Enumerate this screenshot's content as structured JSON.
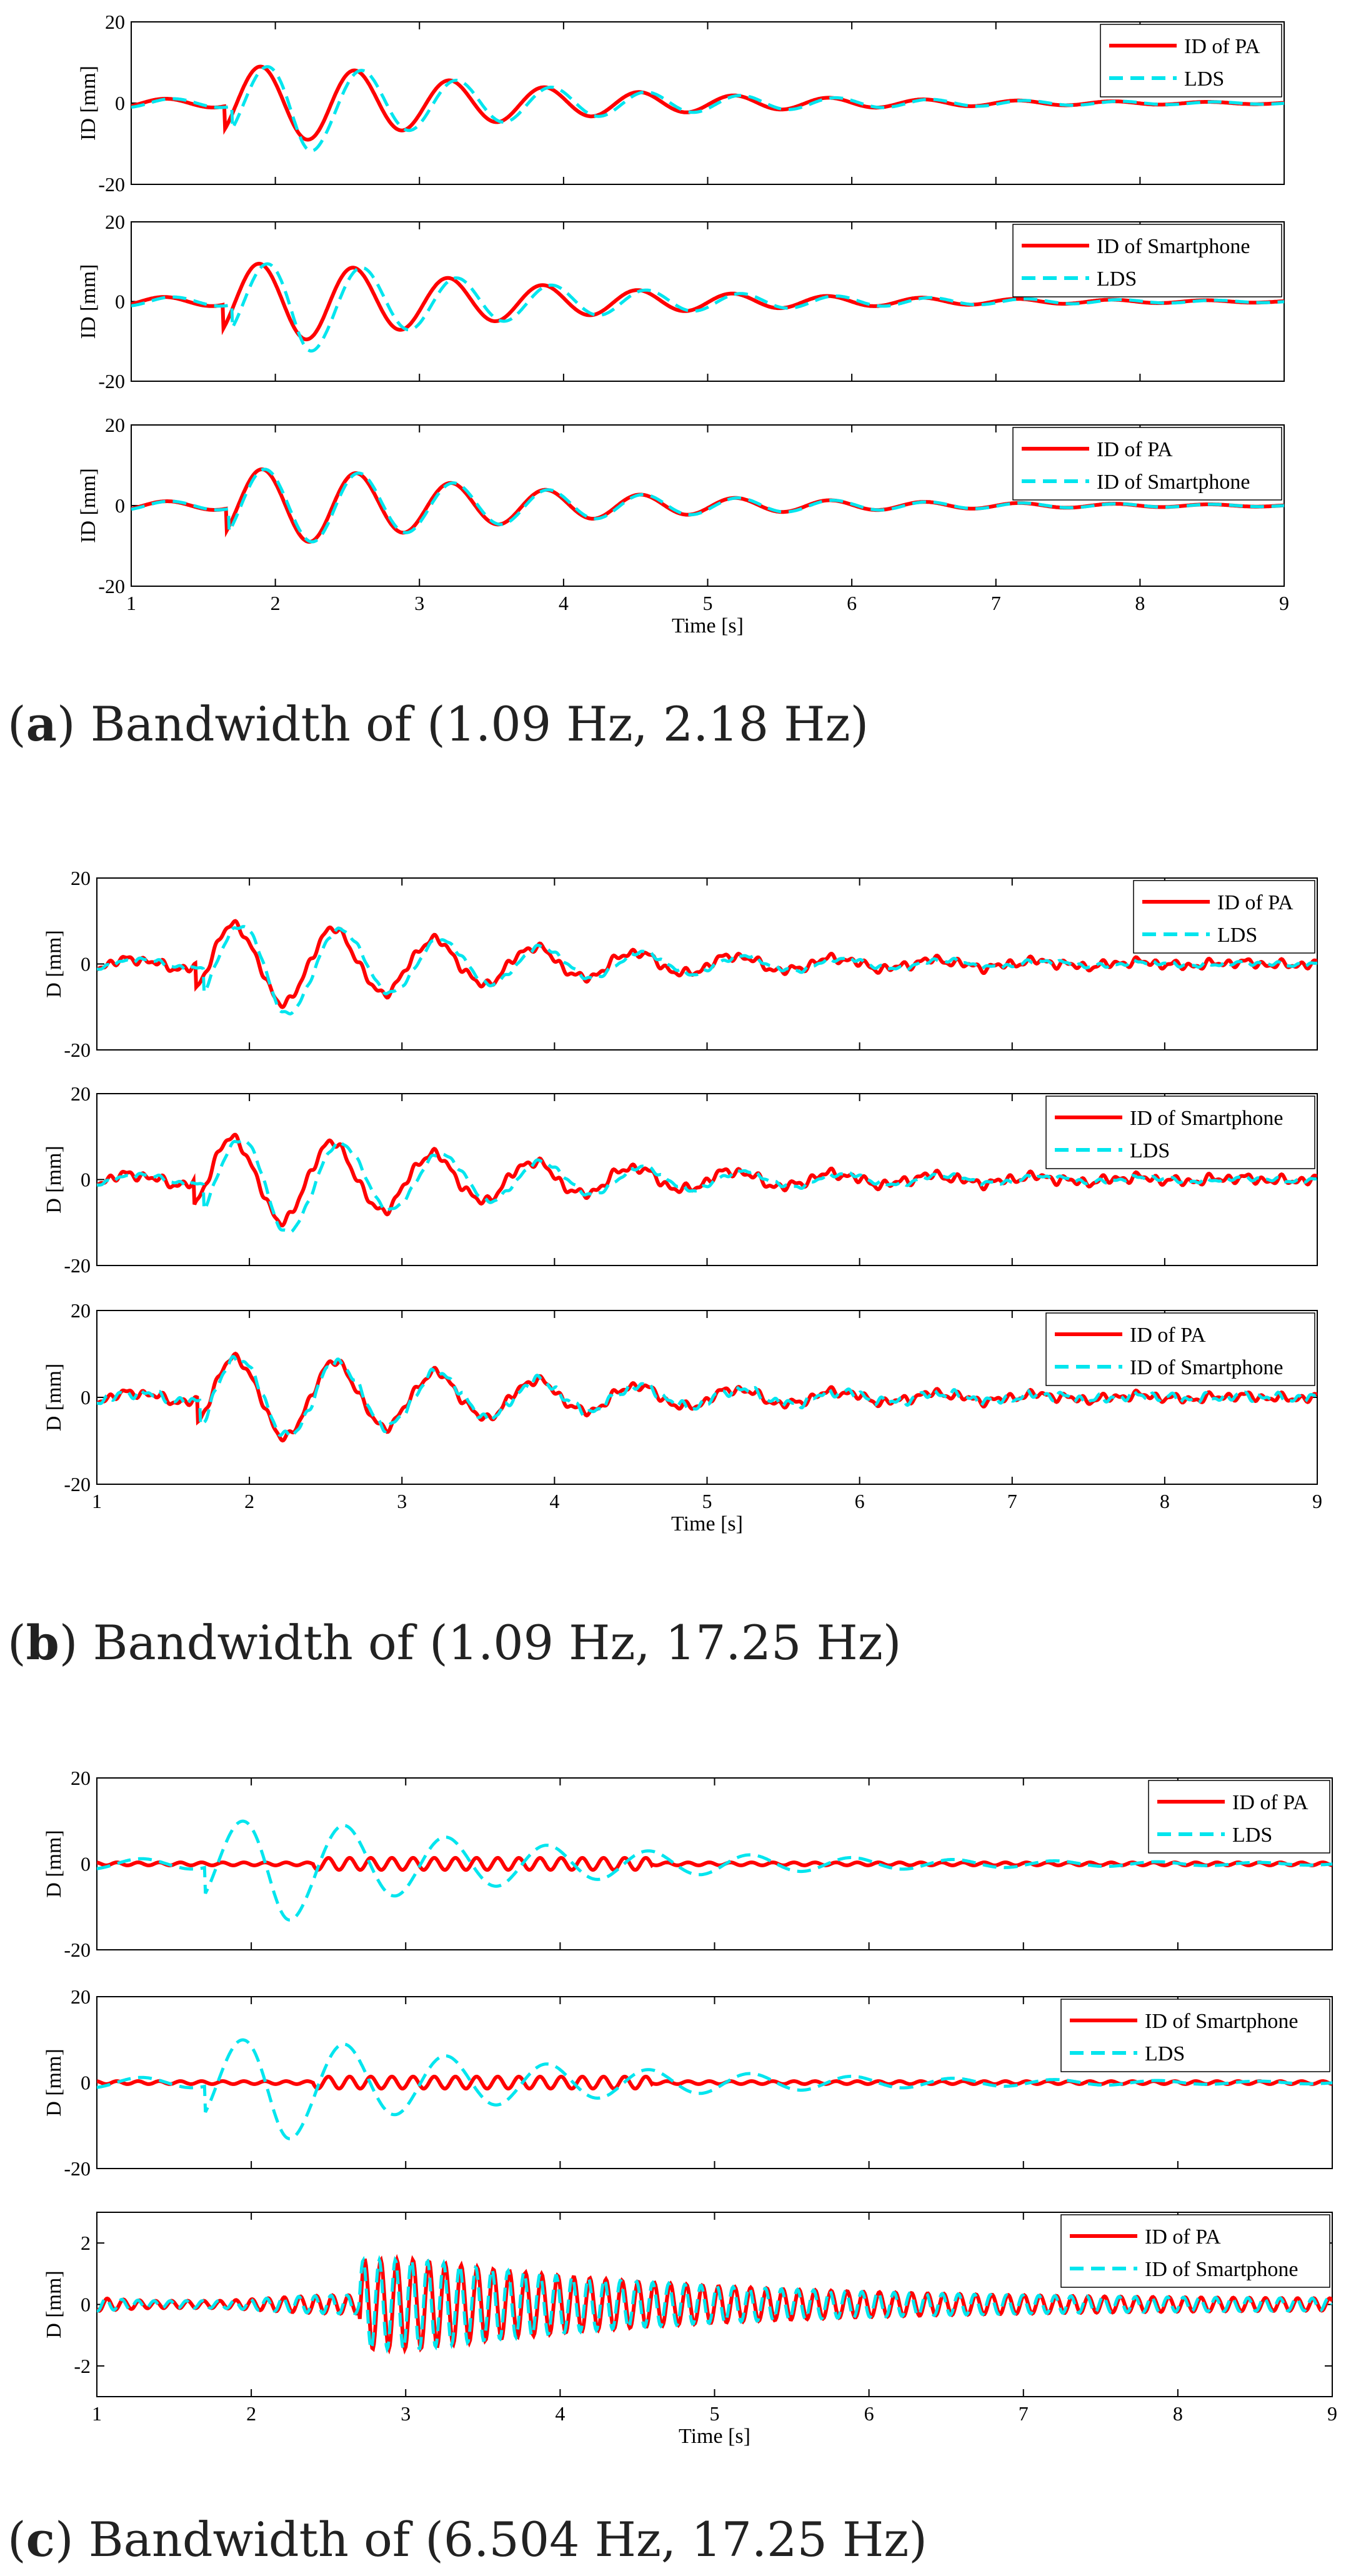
{
  "figure": {
    "captions": [
      {
        "letter": "a",
        "text": ") Bandwidth of (1.09 Hz, 2.18 Hz)"
      },
      {
        "letter": "b",
        "text": ") Bandwidth of (1.09 Hz, 17.25 Hz)"
      },
      {
        "letter": "c",
        "text": ") Bandwidth of (6.504 Hz, 17.25 Hz)"
      }
    ]
  },
  "colors": {
    "red": "#ff0000",
    "cyan": "#00e5ee",
    "axis": "#000000"
  },
  "chart_data": [
    {
      "type": "line",
      "panel": "a-1",
      "ylabel": "ID [mm]",
      "xlabel": "",
      "xlim": [
        1,
        9
      ],
      "ylim": [
        -20,
        20
      ],
      "xticks": [],
      "yticks": [
        -20,
        0,
        20
      ],
      "legend": "top-right",
      "series": [
        {
          "name": "ID of PA",
          "color": "red",
          "style": "solid"
        },
        {
          "name": "LDS",
          "color": "cyan",
          "style": "dashed"
        }
      ],
      "gen": {
        "a": [
          {
            "d": 9,
            "ph": 0.05
          },
          {
            "d": 12,
            "ph": 0.0
          }
        ],
        "noise": [
          0,
          0
        ],
        "amp": 0.9
      }
    },
    {
      "type": "line",
      "panel": "a-2",
      "ylabel": "ID [mm]",
      "xlabel": "",
      "xlim": [
        1,
        9
      ],
      "ylim": [
        -20,
        20
      ],
      "xticks": [],
      "yticks": [
        -20,
        0,
        20
      ],
      "legend": "top-right",
      "series": [
        {
          "name": "ID of Smartphone",
          "color": "red",
          "style": "solid"
        },
        {
          "name": "LDS",
          "color": "cyan",
          "style": "dashed"
        }
      ],
      "gen": {
        "a": [
          {
            "d": 9,
            "ph": 0.06
          },
          {
            "d": 12,
            "ph": 0.0
          }
        ],
        "noise": [
          0,
          0
        ],
        "amp": 0.95
      }
    },
    {
      "type": "line",
      "panel": "a-3",
      "ylabel": "ID [mm]",
      "xlabel": "Time [s]",
      "xlim": [
        1,
        9
      ],
      "ylim": [
        -20,
        20
      ],
      "xticks": [
        1,
        2,
        3,
        4,
        5,
        6,
        7,
        8,
        9
      ],
      "yticks": [
        -20,
        0,
        20
      ],
      "legend": "top-right",
      "series": [
        {
          "name": "ID of PA",
          "color": "red",
          "style": "solid"
        },
        {
          "name": "ID of Smartphone",
          "color": "cyan",
          "style": "dashed"
        }
      ],
      "gen": {
        "a": [
          {
            "d": 9,
            "ph": 0.04
          },
          {
            "d": 10,
            "ph": 0.02
          }
        ],
        "noise": [
          0,
          0
        ],
        "amp": 0.9
      }
    },
    {
      "type": "line",
      "panel": "b-1",
      "ylabel": "D [mm]",
      "xlabel": "",
      "xlim": [
        1,
        9
      ],
      "ylim": [
        -20,
        20
      ],
      "xticks": [],
      "yticks": [
        -20,
        0,
        20
      ],
      "legend": "top-right",
      "series": [
        {
          "name": "ID of PA",
          "color": "red",
          "style": "solid"
        },
        {
          "name": "LDS",
          "color": "cyan",
          "style": "dashed"
        }
      ],
      "gen": {
        "a": [
          {
            "d": 9,
            "ph": 0.05
          },
          {
            "d": 12,
            "ph": 0.0
          }
        ],
        "noise": [
          1.2,
          0.6
        ],
        "amp": 0.9
      }
    },
    {
      "type": "line",
      "panel": "b-2",
      "ylabel": "D [mm]",
      "xlabel": "",
      "xlim": [
        1,
        9
      ],
      "ylim": [
        -20,
        20
      ],
      "xticks": [],
      "yticks": [
        -20,
        0,
        20
      ],
      "legend": "top-right",
      "series": [
        {
          "name": "ID of Smartphone",
          "color": "red",
          "style": "solid"
        },
        {
          "name": "LDS",
          "color": "cyan",
          "style": "dashed"
        }
      ],
      "gen": {
        "a": [
          {
            "d": 9,
            "ph": 0.06
          },
          {
            "d": 12,
            "ph": 0.0
          }
        ],
        "noise": [
          1.3,
          0.6
        ],
        "amp": 0.95
      }
    },
    {
      "type": "line",
      "panel": "b-3",
      "ylabel": "D [mm]",
      "xlabel": "Time [s]",
      "xlim": [
        1,
        9
      ],
      "ylim": [
        -20,
        20
      ],
      "xticks": [
        1,
        2,
        3,
        4,
        5,
        6,
        7,
        8,
        9
      ],
      "yticks": [
        -20,
        0,
        20
      ],
      "legend": "top-right",
      "series": [
        {
          "name": "ID of PA",
          "color": "red",
          "style": "solid"
        },
        {
          "name": "ID of Smartphone",
          "color": "cyan",
          "style": "dashed"
        }
      ],
      "gen": {
        "a": [
          {
            "d": 9,
            "ph": 0.04
          },
          {
            "d": 10,
            "ph": 0.02
          }
        ],
        "noise": [
          1.2,
          1.2
        ],
        "amp": 0.9
      }
    },
    {
      "type": "line",
      "panel": "c-1",
      "ylabel": "D [mm]",
      "xlabel": "",
      "xlim": [
        1,
        9
      ],
      "ylim": [
        -20,
        20
      ],
      "xticks": [],
      "yticks": [
        -20,
        0,
        20
      ],
      "legend": "top-right",
      "series": [
        {
          "name": "ID of PA",
          "color": "red",
          "style": "solid"
        },
        {
          "name": "LDS",
          "color": "cyan",
          "style": "dashed"
        }
      ],
      "gen": {
        "a": [
          {
            "d": 1,
            "ph": 0.0
          },
          {
            "d": 12,
            "ph": 0.0
          }
        ],
        "noise": [
          0,
          0
        ],
        "amp": 1.0
      }
    },
    {
      "type": "line",
      "panel": "c-2",
      "ylabel": "D [mm]",
      "xlabel": "",
      "xlim": [
        1,
        9
      ],
      "ylim": [
        -20,
        20
      ],
      "xticks": [],
      "yticks": [
        -20,
        0,
        20
      ],
      "legend": "top-right",
      "series": [
        {
          "name": "ID of Smartphone",
          "color": "red",
          "style": "solid"
        },
        {
          "name": "LDS",
          "color": "cyan",
          "style": "dashed"
        }
      ],
      "gen": {
        "a": [
          {
            "d": 1,
            "ph": 0.0
          },
          {
            "d": 12,
            "ph": 0.0
          }
        ],
        "noise": [
          0,
          0
        ],
        "amp": 1.0
      }
    },
    {
      "type": "line",
      "panel": "c-3",
      "ylabel": "D [mm]",
      "xlabel": "Time [s]",
      "xlim": [
        1,
        9
      ],
      "ylim": [
        -3,
        3
      ],
      "xticks": [
        1,
        2,
        3,
        4,
        5,
        6,
        7,
        8,
        9
      ],
      "yticks": [
        -2,
        0,
        2
      ],
      "legend": "top-right",
      "series": [
        {
          "name": "ID of PA",
          "color": "red",
          "style": "solid"
        },
        {
          "name": "ID of Smartphone",
          "color": "cyan",
          "style": "dashed"
        }
      ],
      "gen": {
        "a": [
          {
            "d": 20,
            "ph": 0.0
          },
          {
            "d": 20,
            "ph": 0.01
          }
        ],
        "noise": [
          0,
          0
        ],
        "amp": 1.0
      }
    }
  ]
}
